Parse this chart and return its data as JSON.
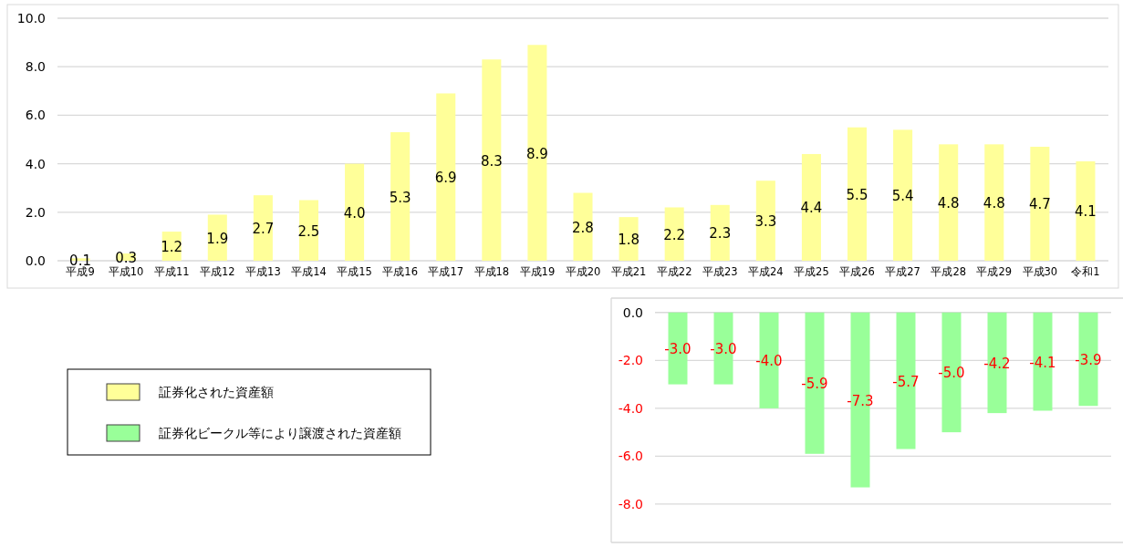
{
  "chart_data": [
    {
      "type": "bar",
      "categories": [
        "平成9",
        "平成10",
        "平成11",
        "平成12",
        "平成13",
        "平成14",
        "平成15",
        "平成16",
        "平成17",
        "平成18",
        "平成19",
        "平成20",
        "平成21",
        "平成22",
        "平成23",
        "平成24",
        "平成25",
        "平成26",
        "平成27",
        "平成28",
        "平成29",
        "平成30",
        "令和1"
      ],
      "series": [
        {
          "name": "証券化された資産額",
          "color": "#ffff99",
          "values": [
            0.1,
            0.3,
            1.2,
            1.9,
            2.7,
            2.5,
            4.0,
            5.3,
            6.9,
            8.3,
            8.9,
            2.8,
            1.8,
            2.2,
            2.3,
            3.3,
            4.4,
            5.5,
            5.4,
            4.8,
            4.8,
            4.7,
            4.1
          ],
          "value_labels": [
            "0.1",
            "0.3",
            "1.2",
            "1.9",
            "2.7",
            "2.5",
            "4.0",
            "5.3",
            "6.9",
            "8.3",
            "8.9",
            "2.8",
            "1.8",
            "2.2",
            "2.3",
            "3.3",
            "4.4",
            "5.5",
            "5.4",
            "4.8",
            "4.8",
            "4.7",
            "4.1"
          ]
        }
      ],
      "ylim": [
        0,
        10
      ],
      "yticks": [
        {
          "value": 0,
          "label": "0.0"
        },
        {
          "value": 2,
          "label": "2.0"
        },
        {
          "value": 4,
          "label": "4.0"
        },
        {
          "value": 6,
          "label": "6.0"
        },
        {
          "value": 8,
          "label": "8.0"
        },
        {
          "value": 10,
          "label": "10.0"
        }
      ],
      "grid": "y",
      "legend": "bottom left"
    },
    {
      "type": "bar",
      "categories": [
        null,
        null,
        null,
        null,
        null,
        null,
        null,
        null,
        null,
        null
      ],
      "series": [
        {
          "name": "証券化ビークル等により譲渡された資産額",
          "color": "#99ff99",
          "values": [
            -3.0,
            -3.0,
            -4.0,
            -5.9,
            -7.3,
            -5.7,
            -5.0,
            -4.2,
            -4.1,
            -3.9
          ],
          "value_labels": [
            "-3.0",
            "-3.0",
            "-4.0",
            "-5.9",
            "-7.3",
            "-5.7",
            "-5.0",
            "-4.2",
            "-4.1",
            "-3.9"
          ]
        }
      ],
      "ylim": [
        -9.6,
        0.6
      ],
      "yticks": [
        {
          "value": 0,
          "label": "0.0"
        },
        {
          "value": -2,
          "label": "-2.0"
        },
        {
          "value": -4,
          "label": "-4.0"
        },
        {
          "value": -6,
          "label": "-6.0"
        },
        {
          "value": -8,
          "label": "-8.0"
        }
      ],
      "grid": "y",
      "legend": "left"
    }
  ]
}
